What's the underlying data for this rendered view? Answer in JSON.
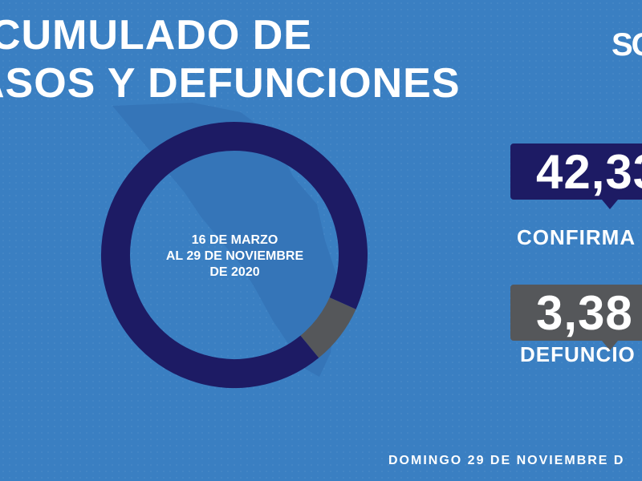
{
  "title": {
    "line1": "CUMULADO DE",
    "line2": "ASOS Y DEFUNCIONES"
  },
  "logo": {
    "text": "SC"
  },
  "chart_data": {
    "type": "pie",
    "slices": [
      {
        "name": "CONFIRMA",
        "value": 42.33,
        "color": "#1d1b64"
      },
      {
        "name": "DEFUNCIO",
        "value": 3.38,
        "color": "#55575a"
      }
    ],
    "center_label": [
      "16 DE MARZO",
      "AL 29 DE NOVIEMBRE",
      "DE 2020"
    ]
  },
  "stats": {
    "confirmed": {
      "value": "42,33",
      "label": "CONFIRMA",
      "color": "#1d1b64"
    },
    "deaths": {
      "value": "3,38",
      "label": "DEFUNCIO",
      "color": "#55575a"
    }
  },
  "footer": {
    "date": "DOMINGO 29 DE NOVIEMBRE D"
  },
  "colors": {
    "background": "#3a7fc2",
    "map": "#3575b8"
  }
}
